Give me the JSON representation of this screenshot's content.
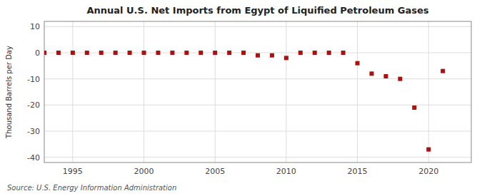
{
  "chart_data": {
    "type": "scatter",
    "title": "Annual U.S. Net Imports from Egypt of Liquified Petroleum Gases",
    "ylabel": "Thousand Barrels per Day",
    "annotations": [
      "Source: U.S. Energy Information Administration"
    ],
    "color": "#aa1111",
    "marker": "square",
    "grid": true,
    "xlim": [
      1993,
      2023
    ],
    "ylim": [
      -42,
      12
    ],
    "xticks": [
      1995,
      2000,
      2005,
      2010,
      2015,
      2020
    ],
    "yticks": [
      -40,
      -30,
      -20,
      -10,
      0,
      10
    ],
    "x": [
      1993,
      1994,
      1995,
      1996,
      1997,
      1998,
      1999,
      2000,
      2001,
      2002,
      2003,
      2004,
      2005,
      2006,
      2007,
      2008,
      2009,
      2010,
      2011,
      2012,
      2013,
      2014,
      2015,
      2016,
      2017,
      2018,
      2019,
      2020,
      2021
    ],
    "values": [
      0,
      0,
      0,
      0,
      0,
      0,
      0,
      0,
      0,
      0,
      0,
      0,
      0,
      0,
      0,
      -1,
      -1,
      -2,
      0,
      0,
      0,
      0,
      -4,
      -8,
      -9,
      -10,
      -21,
      -37,
      -7
    ]
  }
}
